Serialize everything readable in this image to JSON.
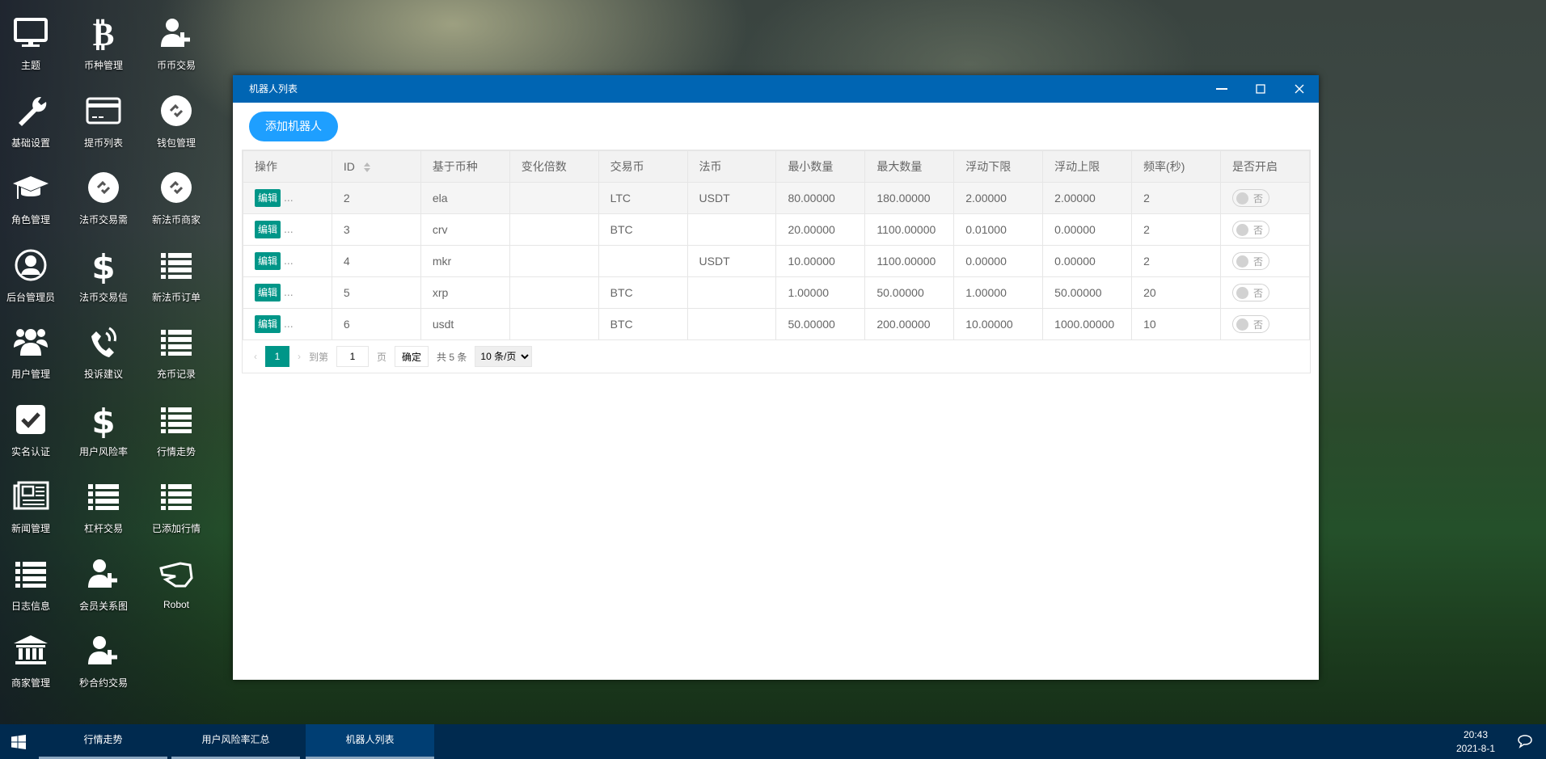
{
  "desktop": {
    "icons": [
      {
        "label": "主题",
        "icon": "monitor-icon"
      },
      {
        "label": "币种管理",
        "icon": "bitcoin-icon"
      },
      {
        "label": "币币交易",
        "icon": "user-plus-icon"
      },
      {
        "label": "基础设置",
        "icon": "wrench-icon"
      },
      {
        "label": "提币列表",
        "icon": "credit-card-icon"
      },
      {
        "label": "钱包管理",
        "icon": "link-circle-icon"
      },
      {
        "label": "角色管理",
        "icon": "graduation-cap-icon"
      },
      {
        "label": "法币交易需",
        "icon": "link-circle-icon"
      },
      {
        "label": "新法币商家",
        "icon": "link-circle-icon"
      },
      {
        "label": "后台管理员",
        "icon": "user-circle-icon"
      },
      {
        "label": "法币交易信",
        "icon": "dollar-icon"
      },
      {
        "label": "新法币订单",
        "icon": "list-icon"
      },
      {
        "label": "用户管理",
        "icon": "users-icon"
      },
      {
        "label": "投诉建议",
        "icon": "phone-icon"
      },
      {
        "label": "充币记录",
        "icon": "list-icon"
      },
      {
        "label": "实名认证",
        "icon": "check-square-icon"
      },
      {
        "label": "用户风险率",
        "icon": "dollar-icon"
      },
      {
        "label": "行情走势",
        "icon": "list-icon"
      },
      {
        "label": "新闻管理",
        "icon": "newspaper-icon"
      },
      {
        "label": "杠杆交易",
        "icon": "list-icon"
      },
      {
        "label": "已添加行情",
        "icon": "list-icon"
      },
      {
        "label": "日志信息",
        "icon": "list-icon"
      },
      {
        "label": "会员关系图",
        "icon": "user-plus-icon"
      },
      {
        "label": "Robot",
        "icon": "hand-scissors-icon"
      },
      {
        "label": "商家管理",
        "icon": "bank-icon"
      },
      {
        "label": "秒合约交易",
        "icon": "user-plus-icon"
      }
    ]
  },
  "window": {
    "title": "机器人列表",
    "add_button": "添加机器人",
    "columns": [
      "操作",
      "ID",
      "基于币种",
      "变化倍数",
      "交易币",
      "法币",
      "最小数量",
      "最大数量",
      "浮动下限",
      "浮动上限",
      "频率(秒)",
      "是否开启"
    ],
    "edit_label": "编辑",
    "more_label": "...",
    "switch_off_label": "否",
    "rows": [
      [
        "2",
        "ela",
        "",
        "LTC",
        "USDT",
        "80.00000",
        "180.00000",
        "2.00000",
        "2.00000",
        "2"
      ],
      [
        "3",
        "crv",
        "",
        "BTC",
        "",
        "20.00000",
        "1100.00000",
        "0.01000",
        "0.00000",
        "2"
      ],
      [
        "4",
        "mkr",
        "",
        "",
        "USDT",
        "10.00000",
        "1100.00000",
        "0.00000",
        "0.00000",
        "2"
      ],
      [
        "5",
        "xrp",
        "",
        "BTC",
        "",
        "1.00000",
        "50.00000",
        "1.00000",
        "50.00000",
        "20"
      ],
      [
        "6",
        "usdt",
        "",
        "BTC",
        "",
        "50.00000",
        "200.00000",
        "10.00000",
        "1000.00000",
        "10"
      ]
    ],
    "pager": {
      "current": "1",
      "goto_label": "到第",
      "goto_value": "1",
      "page_label": "页",
      "confirm": "确定",
      "total": "共 5 条",
      "page_size": "10 条/页"
    }
  },
  "taskbar": {
    "tabs": [
      "行情走势",
      "用户风险率汇总",
      "机器人列表"
    ],
    "active": 2,
    "time": "20:43",
    "date": "2021-8-1"
  },
  "colors": {
    "titlebar": "#0065b3",
    "primary": "#1e9fff",
    "teal": "#009688",
    "taskbar": "#002a4f"
  }
}
